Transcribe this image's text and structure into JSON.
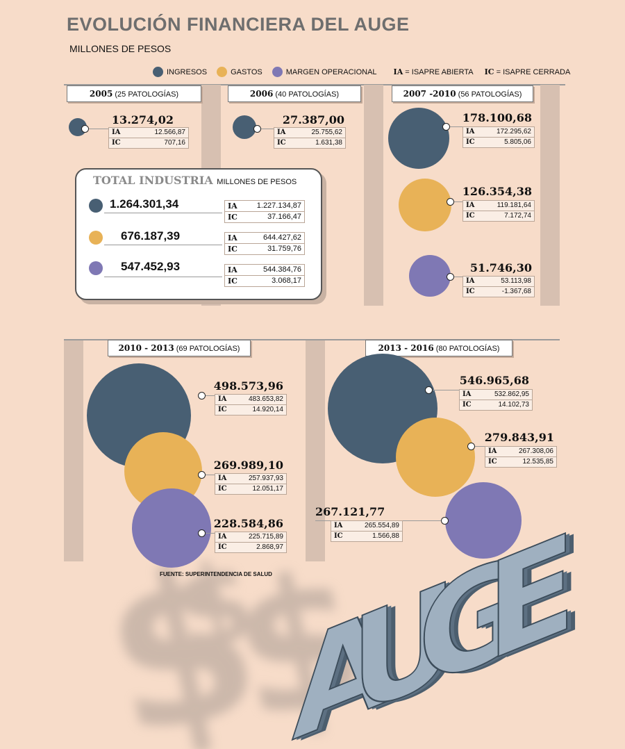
{
  "title": "EVOLUCIÓN  FINANCIERA DEL AUGE",
  "subtitle": "MILLONES DE PESOS",
  "legend": {
    "ingresos": "INGRESOS",
    "gastos": "GASTOS",
    "margen": "MARGEN OPERACIONAL",
    "ia_key": "IA",
    "ia_text": "= ISAPRE ABIERTA",
    "ic_key": "IC",
    "ic_text": "= ISAPRE CERRADA"
  },
  "colors": {
    "ingresos": "#485f73",
    "gastos": "#e8b257",
    "margen": "#7f78b4"
  },
  "total_industria": {
    "head": "TOTAL INDUSTRIA",
    "unit": "MILLONES DE PESOS",
    "rows": [
      {
        "total": "1.264.301,34",
        "ia": "1.227.134,87",
        "ic": "37.166,47"
      },
      {
        "total": "676.187,39",
        "ia": "644.427,62",
        "ic": "31.759,76"
      },
      {
        "total": "547.452,93",
        "ia": "544.384,76",
        "ic": "3.068,17"
      }
    ]
  },
  "periods": [
    {
      "label": "2005",
      "detail": "(25 PATOLOGÍAS)"
    },
    {
      "label": "2006",
      "detail": "(40 PATOLOGÍAS)"
    },
    {
      "label": "2007 -2010",
      "detail": "(56 PATOLOGÍAS)"
    },
    {
      "label": "2010 - 2013",
      "detail": "(69 PATOLOGÍAS)"
    },
    {
      "label": "2013 - 2016",
      "detail": "(80 PATOLOGÍAS)"
    }
  ],
  "chart_data": {
    "type": "bubble",
    "unit": "millones de pesos",
    "categories": [
      "2005",
      "2006",
      "2007 -2010",
      "2010 - 2013",
      "2013 - 2016"
    ],
    "series": [
      {
        "name": "INGRESOS",
        "values": [
          {
            "total": "13.274,02",
            "ia": "12.566,87",
            "ic": "707,16"
          },
          {
            "total": "27.387,00",
            "ia": "25.755,62",
            "ic": "1.631,38"
          },
          {
            "total": "178.100,68",
            "ia": "172.295,62",
            "ic": "5.805,06"
          },
          {
            "total": "498.573,96",
            "ia": "483.653,82",
            "ic": "14.920,14"
          },
          {
            "total": "546.965,68",
            "ia": "532.862,95",
            "ic": "14.102,73"
          }
        ]
      },
      {
        "name": "GASTOS",
        "values": [
          null,
          null,
          {
            "total": "126.354,38",
            "ia": "119.181,64",
            "ic": "7.172,74"
          },
          {
            "total": "269.989,10",
            "ia": "257.937,93",
            "ic": "12.051,17"
          },
          {
            "total": "279.843,91",
            "ia": "267.308,06",
            "ic": "12.535,85"
          }
        ]
      },
      {
        "name": "MARGEN OPERACIONAL",
        "values": [
          null,
          null,
          {
            "total": "51.746,30",
            "ia": "53.113,98",
            "ic": "-1.367,68"
          },
          {
            "total": "228.584,86",
            "ia": "225.715,89",
            "ic": "2.868,97"
          },
          {
            "total": "267.121,77",
            "ia": "265.554,89",
            "ic": "1.566,88"
          }
        ]
      }
    ]
  },
  "ia_label": "IA",
  "ic_label": "IC",
  "source": "FUENTE: SUPERINTENDENCIA DE SALUD",
  "art_text": "AUGE"
}
